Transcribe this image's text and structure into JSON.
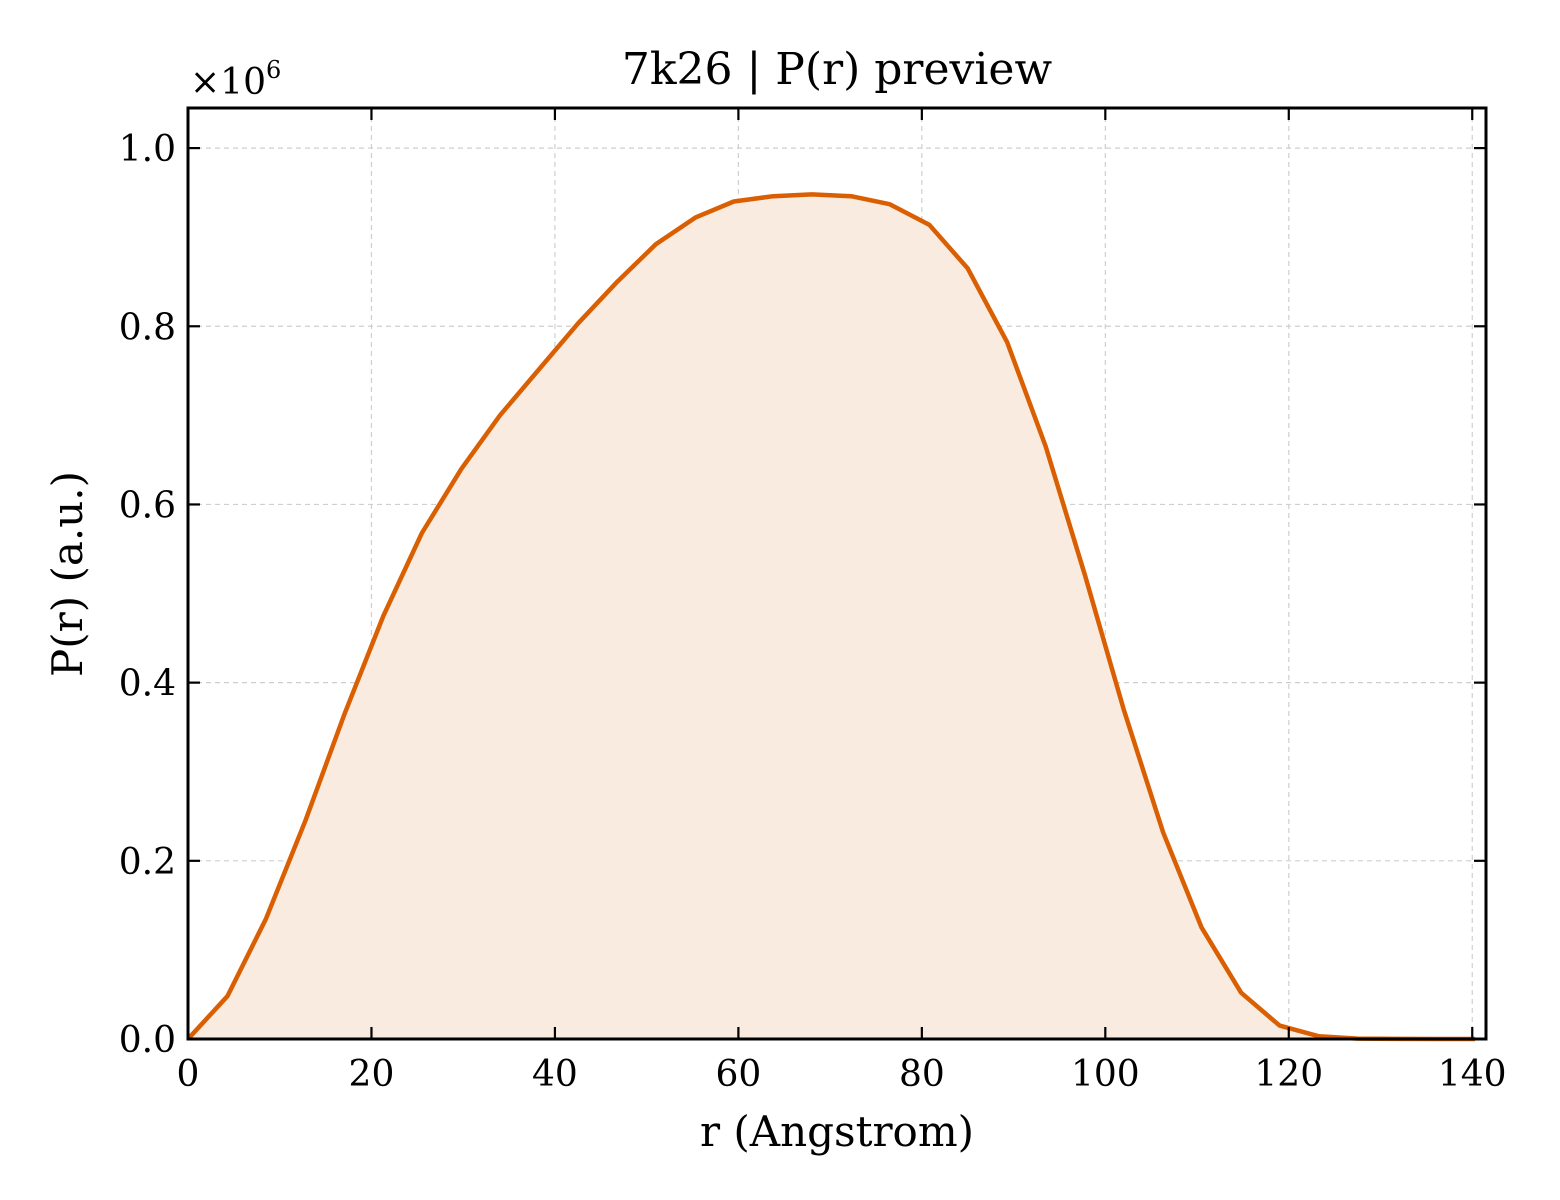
{
  "chart_data": {
    "type": "area",
    "title": "7k26 | P(r) preview",
    "xlabel": "r (Angstrom)",
    "ylabel": "P(r) (a.u.)",
    "y_multiplier_label": "×10",
    "y_multiplier_exponent": "6",
    "xlim": [
      0,
      141.5
    ],
    "ylim": [
      0,
      1.045
    ],
    "xticks": [
      0,
      20,
      40,
      60,
      80,
      100,
      120,
      140
    ],
    "yticks": [
      0.0,
      0.2,
      0.4,
      0.6,
      0.8,
      1.0
    ],
    "xtick_labels": [
      "0",
      "20",
      "40",
      "60",
      "80",
      "100",
      "120",
      "140"
    ],
    "ytick_labels": [
      "0.0",
      "0.2",
      "0.4",
      "0.6",
      "0.8",
      "1.0"
    ],
    "grid": true,
    "series": [
      {
        "color": "#d95f02",
        "fill_color": "#f9ebe0",
        "x": [
          0,
          4.3,
          8.5,
          12.8,
          17.0,
          21.3,
          25.5,
          29.8,
          34.0,
          38.3,
          42.5,
          46.8,
          51.0,
          55.3,
          59.5,
          63.8,
          68.0,
          72.3,
          76.5,
          80.8,
          85.0,
          89.3,
          93.5,
          97.8,
          102.0,
          106.3,
          110.5,
          114.8,
          119.0,
          123.3,
          127.5,
          131.8,
          136.0,
          140.3
        ],
        "y": [
          0.0,
          0.048,
          0.135,
          0.245,
          0.363,
          0.475,
          0.568,
          0.64,
          0.7,
          0.752,
          0.803,
          0.85,
          0.892,
          0.922,
          0.94,
          0.946,
          0.948,
          0.946,
          0.937,
          0.914,
          0.865,
          0.782,
          0.665,
          0.52,
          0.37,
          0.232,
          0.125,
          0.052,
          0.015,
          0.003,
          0.0005,
          0.0001,
          0.0,
          0.0
        ]
      }
    ]
  }
}
